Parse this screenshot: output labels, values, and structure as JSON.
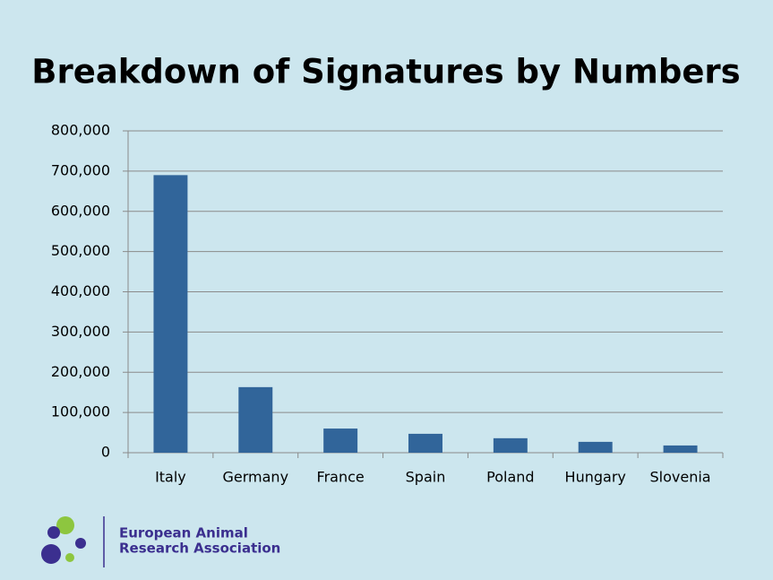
{
  "chart_data": {
    "type": "bar",
    "title": "Breakdown of Signatures by Numbers",
    "categories": [
      "Italy",
      "Germany",
      "France",
      "Spain",
      "Poland",
      "Hungary",
      "Slovenia"
    ],
    "values": [
      690000,
      163000,
      60000,
      47000,
      36000,
      27000,
      18000
    ],
    "color": "#31659a",
    "ylim": [
      0,
      800000
    ],
    "yticks": [
      0,
      {
        "value": 100000,
        "label": "100,000"
      },
      {
        "value": 200000,
        "label": "200,000"
      },
      {
        "value": 300000,
        "label": "300,000"
      },
      {
        "value": 400000,
        "label": "400,000"
      },
      {
        "value": 500000,
        "label": "500,000"
      },
      {
        "value": 600000,
        "label": "600,000"
      },
      {
        "value": 700000,
        "label": "700,000"
      },
      {
        "value": 800000,
        "label": "800,000"
      }
    ],
    "grid": true
  },
  "footer": {
    "organization": [
      "European Animal",
      "Research Association"
    ]
  }
}
